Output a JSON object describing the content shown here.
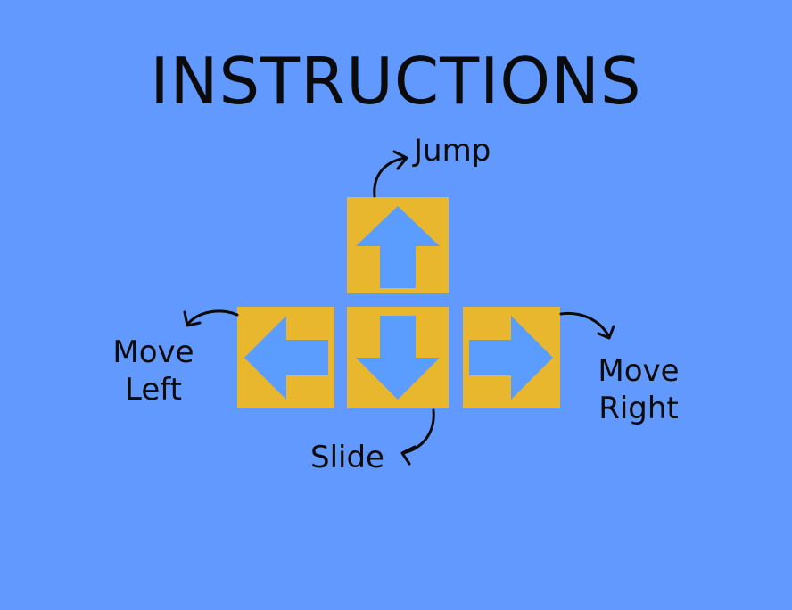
{
  "screen": {
    "title": "INSTRUCTIONS",
    "background_color": "#6199FF"
  },
  "keys": {
    "color": "#E8B72D",
    "arrow_color": "#5A9CFF",
    "up": {
      "icon": "arrow-up-icon"
    },
    "left": {
      "icon": "arrow-left-icon"
    },
    "down": {
      "icon": "arrow-down-icon"
    },
    "right": {
      "icon": "arrow-right-icon"
    }
  },
  "labels": {
    "jump": "Jump",
    "move_left_line1": "Move",
    "move_left_line2": "Left",
    "move_right_line1": "Move",
    "move_right_line2": "Right",
    "slide": "Slide"
  }
}
